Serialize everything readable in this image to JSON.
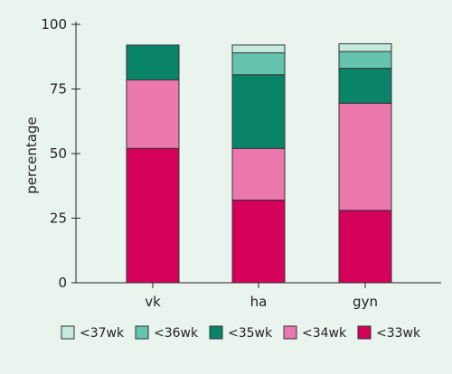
{
  "chart_data": {
    "type": "bar",
    "stacked": true,
    "categories": [
      "vk",
      "ha",
      "gyn"
    ],
    "ylabel": "percentage",
    "xlabel": "",
    "ylim": [
      0,
      100
    ],
    "yticks": [
      0,
      25,
      50,
      75,
      100
    ],
    "grid": false,
    "legend_position": "bottom",
    "series": [
      {
        "name": "<33wk",
        "color": "#d4005a",
        "values": [
          52,
          32,
          28
        ]
      },
      {
        "name": "<34wk",
        "color": "#ea78ad",
        "values": [
          26.5,
          20,
          41.5
        ]
      },
      {
        "name": "<35wk",
        "color": "#0a8468",
        "values": [
          13.5,
          28.5,
          13.5
        ]
      },
      {
        "name": "<36wk",
        "color": "#66c3ad",
        "values": [
          0,
          8.5,
          6.5
        ]
      },
      {
        "name": "<37wk",
        "color": "#c6e9df",
        "values": [
          0,
          3,
          3
        ]
      }
    ],
    "legend_order": [
      "<37wk",
      "<36wk",
      "<35wk",
      "<34wk",
      "<33wk"
    ]
  }
}
